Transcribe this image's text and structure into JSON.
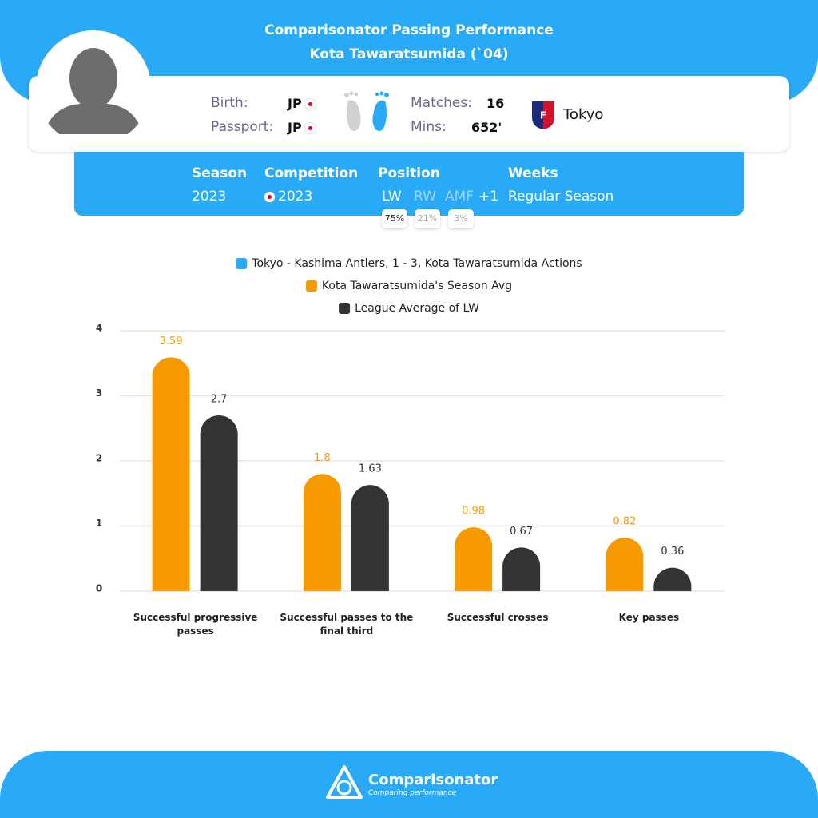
{
  "header": {
    "title": "Comparisonator Passing Performance",
    "subtitle": "Kota Tawaratsumida (`04)"
  },
  "profile": {
    "birth_label": "Birth:",
    "birth": "JP",
    "passport_label": "Passport:",
    "passport": "JP",
    "matches_label": "Matches:",
    "matches": "16",
    "mins_label": "Mins:",
    "mins": "652'",
    "team": "Tokyo"
  },
  "filters": {
    "season_label": "Season",
    "season": "2023",
    "competition_label": "Competition",
    "competition": "2023",
    "position_label": "Position",
    "positions": [
      {
        "name": "LW",
        "share": "75%"
      },
      {
        "name": "RW",
        "share": "21%"
      },
      {
        "name": "AMF",
        "share": "3%"
      }
    ],
    "positions_more": "+1",
    "weeks_label": "Weeks",
    "weeks": "Regular Season"
  },
  "chart_data": {
    "type": "bar",
    "categories": [
      "Successful progressive passes",
      "Successful passes to the final third",
      "Successful crosses",
      "Key passes"
    ],
    "series": [
      {
        "name": "Tokyo - Kashima Antlers, 1 - 3, Kota Tawaratsumida Actions",
        "color": "#29aaf7",
        "values": [
          null,
          null,
          null,
          null
        ]
      },
      {
        "name": "Kota Tawaratsumida's Season Avg",
        "color": "#f79a00",
        "values": [
          3.59,
          1.8,
          0.98,
          0.82
        ]
      },
      {
        "name": "League Average of LW",
        "color": "#333333",
        "values": [
          2.7,
          1.63,
          0.67,
          0.36
        ]
      }
    ],
    "ylim": [
      0,
      4
    ],
    "yticks": [
      0,
      1,
      2,
      3,
      4
    ],
    "grid": true
  },
  "footer": {
    "brand": "Comparisonator",
    "tagline": "Comparing performance"
  }
}
